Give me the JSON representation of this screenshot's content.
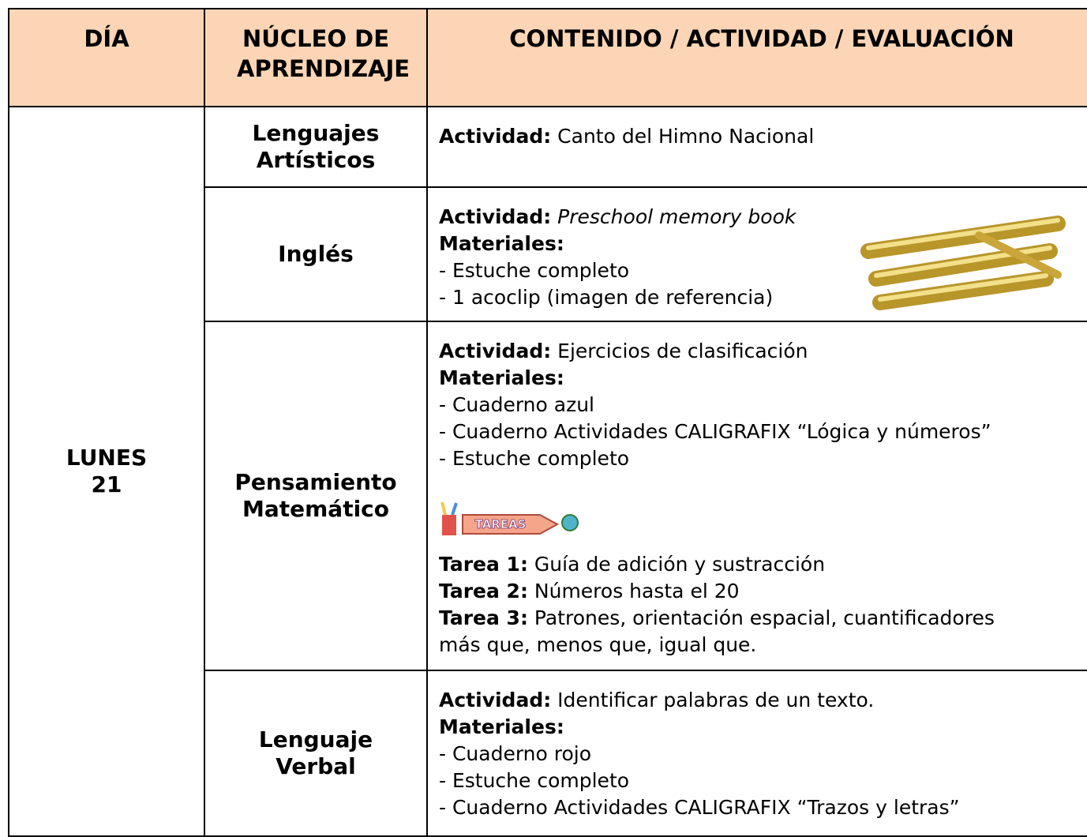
{
  "table": {
    "header": [
      "DÍA",
      "NÚCLEO DE APRENDIZAJE",
      "CONTENIDO / ACTIVIDAD / EVALUACIÓN"
    ],
    "day": [
      "LUNES",
      "21"
    ],
    "rows": [
      {
        "nucleo": [
          "Lenguajes",
          "Artísticos"
        ],
        "content": [
          {
            "label": "Actividad:",
            "text": "Canto del Himno Nacional"
          }
        ]
      },
      {
        "nucleo": [
          "Inglés"
        ],
        "content": [
          {
            "label": "Actividad:",
            "italic": "Preschool memory book"
          },
          {
            "label": "Materiales:"
          },
          {
            "text": "- Estuche completo"
          },
          {
            "text": "- 1 acoclip (imagen de referencia)"
          }
        ]
      },
      {
        "nucleo": [
          "Pensamiento",
          "Matemático"
        ],
        "content": [
          {
            "label": "Actividad:",
            "text": "Ejercicios de clasificación"
          },
          {
            "label": "Materiales:"
          },
          {
            "text": "- Cuaderno azul"
          },
          {
            "text": "- Cuaderno Actividades CALIGRAFIX “Lógica y números”"
          },
          {
            "text": "- Estuche completo"
          }
        ],
        "icon_label": "TAREAS",
        "tareas": [
          {
            "label": "Tarea 1:",
            "text": "Guía de adición y sustracción"
          },
          {
            "label": "Tarea 2:",
            "text": "Números hasta el 20"
          },
          {
            "label": "Tarea 3:",
            "text": "Patrones, orientación espacial, cuantificadores más que, menos que, igual que."
          }
        ]
      },
      {
        "nucleo": [
          "Lenguaje",
          "Verbal"
        ],
        "content": [
          {
            "label": "Actividad:",
            "text": "Identificar palabras de un texto."
          },
          {
            "label": "Materiales:"
          },
          {
            "text": "- Cuaderno rojo"
          },
          {
            "text": "- Estuche completo"
          },
          {
            "text": "- Cuaderno Actividades CALIGRAFIX “Trazos y letras”"
          }
        ]
      }
    ]
  }
}
